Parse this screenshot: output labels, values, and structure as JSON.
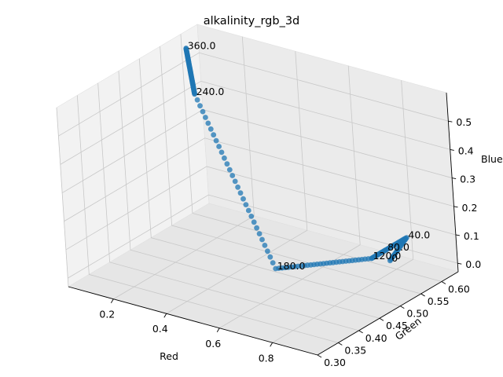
{
  "chart_data": {
    "type": "scatter",
    "title": "alkalinity_rgb_3d",
    "xlabel": "Red",
    "ylabel": "Green",
    "zlabel": "Blue",
    "xlim": [
      0.03,
      0.97
    ],
    "ylim": [
      0.3,
      0.64
    ],
    "zlim": [
      -0.03,
      0.6
    ],
    "xticks": [
      0.2,
      0.4,
      0.6,
      0.8
    ],
    "xtick_labels": [
      "0.2",
      "0.4",
      "0.6",
      "0.8"
    ],
    "yticks": [
      0.3,
      0.35,
      0.4,
      0.45,
      0.5,
      0.55,
      0.6
    ],
    "ytick_labels": [
      "0.30",
      "0.35",
      "0.40",
      "0.45",
      "0.50",
      "0.55",
      "0.60"
    ],
    "zticks": [
      0.0,
      0.1,
      0.2,
      0.3,
      0.4,
      0.5
    ],
    "ztick_labels": [
      "0.0",
      "0.1",
      "0.2",
      "0.3",
      "0.4",
      "0.5"
    ],
    "grid": true,
    "marker_color": "#1f77b4",
    "segments": [
      {
        "from": [
          0.81,
          0.58,
          0.02
        ],
        "to": [
          0.83,
          0.61,
          0.08
        ],
        "n": 20
      },
      {
        "from": [
          0.83,
          0.61,
          0.08
        ],
        "to": [
          0.83,
          0.56,
          0.08
        ],
        "n": 20
      },
      {
        "from": [
          0.83,
          0.56,
          0.08
        ],
        "to": [
          0.83,
          0.525,
          0.08
        ],
        "n": 20
      },
      {
        "from": [
          0.83,
          0.525,
          0.08
        ],
        "to": [
          0.55,
          0.47,
          0.02
        ],
        "n": 30
      },
      {
        "from": [
          0.55,
          0.47,
          0.02
        ],
        "to": [
          0.25,
          0.49,
          0.54
        ],
        "n": 30
      },
      {
        "from": [
          0.25,
          0.49,
          0.54
        ],
        "to": [
          0.08,
          0.58,
          0.58
        ],
        "n": 60
      }
    ],
    "annotations": [
      {
        "text": "0",
        "x": 0.81,
        "y": 0.58,
        "z": 0.02
      },
      {
        "text": "40.0",
        "x": 0.83,
        "y": 0.61,
        "z": 0.08
      },
      {
        "text": "80.0",
        "x": 0.83,
        "y": 0.56,
        "z": 0.08
      },
      {
        "text": "120.0",
        "x": 0.83,
        "y": 0.525,
        "z": 0.08
      },
      {
        "text": "180.0",
        "x": 0.55,
        "y": 0.47,
        "z": 0.02
      },
      {
        "text": "240.0",
        "x": 0.25,
        "y": 0.49,
        "z": 0.54
      },
      {
        "text": "360.0",
        "x": 0.08,
        "y": 0.58,
        "z": 0.58
      }
    ]
  }
}
